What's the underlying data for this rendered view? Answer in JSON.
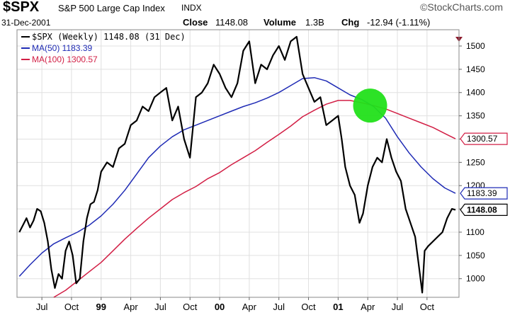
{
  "header": {
    "symbol": "$SPX",
    "name": "S&P 500 Large Cap Index",
    "exchange": "INDX",
    "brand": "©StockCharts.com",
    "date": "31-Dec-2001",
    "close_label": "Close",
    "close_value": "1148.08",
    "volume_label": "Volume",
    "volume_value": "1.3B",
    "chg_label": "Chg",
    "chg_value": "-12.94 (-1.11%)"
  },
  "colors": {
    "price": "#000000",
    "ma50": "#1f2bb5",
    "ma100": "#d21f45",
    "marker": "#22e01a",
    "grid": "#e0e0e0"
  },
  "chart_data": {
    "type": "line",
    "legend_placement": "top-left",
    "grid": true,
    "ylim": [
      960,
      1535
    ],
    "y_ticks": [
      1000,
      1050,
      1100,
      1150,
      1200,
      1250,
      1300,
      1350,
      1400,
      1450,
      1500
    ],
    "x_ticks": [
      {
        "label": "Jul",
        "x": 1998.5,
        "bold": false
      },
      {
        "label": "Oct",
        "x": 1998.75,
        "bold": false
      },
      {
        "label": "99",
        "x": 1999.0,
        "bold": true
      },
      {
        "label": "Apr",
        "x": 1999.25,
        "bold": false
      },
      {
        "label": "Jul",
        "x": 1999.5,
        "bold": false
      },
      {
        "label": "Oct",
        "x": 1999.75,
        "bold": false
      },
      {
        "label": "00",
        "x": 2000.0,
        "bold": true
      },
      {
        "label": "Apr",
        "x": 2000.25,
        "bold": false
      },
      {
        "label": "Jul",
        "x": 2000.5,
        "bold": false
      },
      {
        "label": "Oct",
        "x": 2000.75,
        "bold": false
      },
      {
        "label": "01",
        "x": 2001.0,
        "bold": true
      },
      {
        "label": "Apr",
        "x": 2001.25,
        "bold": false
      },
      {
        "label": "Jul",
        "x": 2001.5,
        "bold": false
      },
      {
        "label": "Oct",
        "x": 2001.75,
        "bold": false
      }
    ],
    "series": [
      {
        "name": "$SPX (Weekly) 1148.08 (31 Dec)",
        "last_label": "1148.08",
        "color": "#000000",
        "x": [
          1998.31,
          1998.34,
          1998.37,
          1998.4,
          1998.43,
          1998.46,
          1998.49,
          1998.52,
          1998.55,
          1998.58,
          1998.61,
          1998.64,
          1998.67,
          1998.7,
          1998.73,
          1998.76,
          1998.79,
          1998.82,
          1998.85,
          1998.88,
          1998.91,
          1998.94,
          1998.97,
          1999.0,
          1999.05,
          1999.1,
          1999.15,
          1999.2,
          1999.25,
          1999.3,
          1999.35,
          1999.4,
          1999.45,
          1999.5,
          1999.55,
          1999.6,
          1999.65,
          1999.7,
          1999.75,
          1999.8,
          1999.85,
          1999.9,
          1999.95,
          2000.0,
          2000.05,
          2000.1,
          2000.15,
          2000.2,
          2000.25,
          2000.3,
          2000.35,
          2000.4,
          2000.45,
          2000.5,
          2000.55,
          2000.6,
          2000.65,
          2000.7,
          2000.75,
          2000.8,
          2000.85,
          2000.9,
          2000.95,
          2001.0,
          2001.03,
          2001.06,
          2001.1,
          2001.14,
          2001.18,
          2001.21,
          2001.25,
          2001.29,
          2001.33,
          2001.37,
          2001.41,
          2001.45,
          2001.49,
          2001.53,
          2001.57,
          2001.61,
          2001.65,
          2001.69,
          2001.71,
          2001.73,
          2001.76,
          2001.8,
          2001.84,
          2001.88,
          2001.92,
          2001.96,
          2001.99
        ],
        "values": [
          1100,
          1115,
          1130,
          1110,
          1125,
          1150,
          1145,
          1120,
          1080,
          1020,
          980,
          1010,
          1000,
          1060,
          1080,
          1050,
          990,
          1000,
          1080,
          1130,
          1160,
          1165,
          1190,
          1230,
          1250,
          1240,
          1280,
          1290,
          1330,
          1340,
          1370,
          1360,
          1390,
          1400,
          1410,
          1340,
          1370,
          1300,
          1260,
          1390,
          1400,
          1420,
          1460,
          1440,
          1410,
          1390,
          1420,
          1490,
          1510,
          1420,
          1460,
          1450,
          1480,
          1500,
          1470,
          1510,
          1520,
          1440,
          1410,
          1380,
          1390,
          1330,
          1340,
          1350,
          1300,
          1240,
          1200,
          1180,
          1120,
          1140,
          1200,
          1240,
          1260,
          1250,
          1300,
          1260,
          1230,
          1210,
          1150,
          1120,
          1090,
          1010,
          970,
          1060,
          1070,
          1080,
          1090,
          1100,
          1130,
          1150,
          1148.08
        ]
      },
      {
        "name": "MA(50) 1183.39",
        "last_label": "1183.39",
        "color": "#1f2bb5",
        "x": [
          1998.31,
          1998.4,
          1998.5,
          1998.6,
          1998.7,
          1998.8,
          1998.9,
          1999.0,
          1999.1,
          1999.2,
          1999.3,
          1999.4,
          1999.5,
          1999.6,
          1999.7,
          1999.8,
          1999.9,
          2000.0,
          2000.1,
          2000.2,
          2000.3,
          2000.4,
          2000.5,
          2000.6,
          2000.7,
          2000.8,
          2000.9,
          2001.0,
          2001.1,
          2001.2,
          2001.3,
          2001.4,
          2001.5,
          2001.6,
          2001.7,
          2001.8,
          2001.9,
          2001.99
        ],
        "values": [
          1005,
          1030,
          1055,
          1075,
          1088,
          1100,
          1115,
          1135,
          1160,
          1190,
          1225,
          1260,
          1285,
          1305,
          1320,
          1330,
          1340,
          1350,
          1360,
          1370,
          1378,
          1388,
          1400,
          1415,
          1430,
          1432,
          1425,
          1410,
          1395,
          1385,
          1370,
          1345,
          1305,
          1270,
          1240,
          1215,
          1195,
          1183.39
        ]
      },
      {
        "name": "MA(100) 1300.57",
        "last_label": "1300.57",
        "color": "#d21f45",
        "x": [
          1998.6,
          1998.7,
          1998.8,
          1998.9,
          1999.0,
          1999.1,
          1999.2,
          1999.3,
          1999.4,
          1999.5,
          1999.6,
          1999.7,
          1999.8,
          1999.9,
          2000.0,
          2000.1,
          2000.2,
          2000.3,
          2000.4,
          2000.5,
          2000.6,
          2000.7,
          2000.8,
          2000.9,
          2001.0,
          2001.1,
          2001.2,
          2001.3,
          2001.4,
          2001.5,
          2001.6,
          2001.7,
          2001.8,
          2001.9,
          2001.99
        ],
        "values": [
          960,
          975,
          995,
          1015,
          1035,
          1060,
          1085,
          1108,
          1130,
          1150,
          1170,
          1185,
          1198,
          1215,
          1228,
          1245,
          1260,
          1275,
          1293,
          1310,
          1328,
          1348,
          1362,
          1375,
          1383,
          1383,
          1378,
          1372,
          1365,
          1355,
          1345,
          1335,
          1325,
          1312,
          1300.57
        ]
      }
    ],
    "marker": {
      "x": 2001.27,
      "y": 1372,
      "color": "#22e01a"
    }
  }
}
